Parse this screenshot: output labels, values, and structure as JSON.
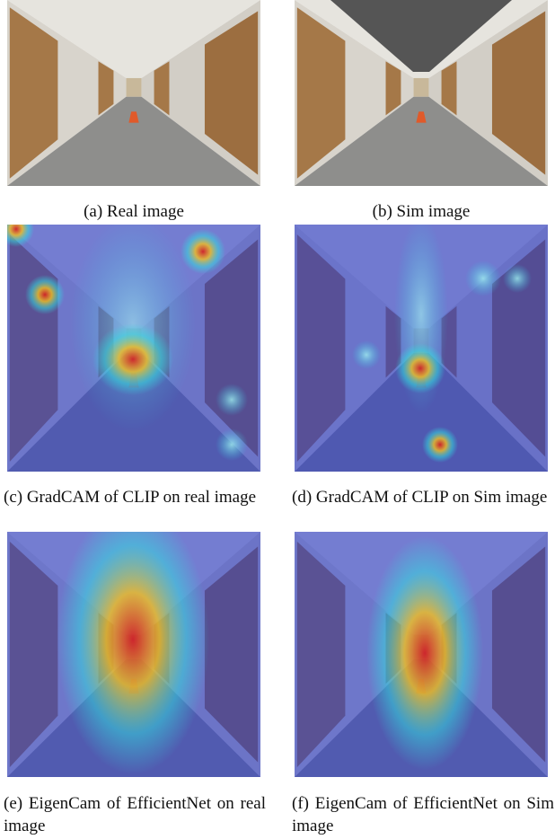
{
  "panels": [
    {
      "caption": "(a) Real image"
    },
    {
      "caption": "(b) Sim image"
    },
    {
      "caption": "(c) GradCAM of CLIP on real image"
    },
    {
      "caption": "(d) GradCAM of CLIP on Sim image"
    },
    {
      "caption": "(e) EigenCam of EfficientNet on real image"
    },
    {
      "caption": "(f) EigenCam of EfficientNet on Sim image"
    }
  ]
}
